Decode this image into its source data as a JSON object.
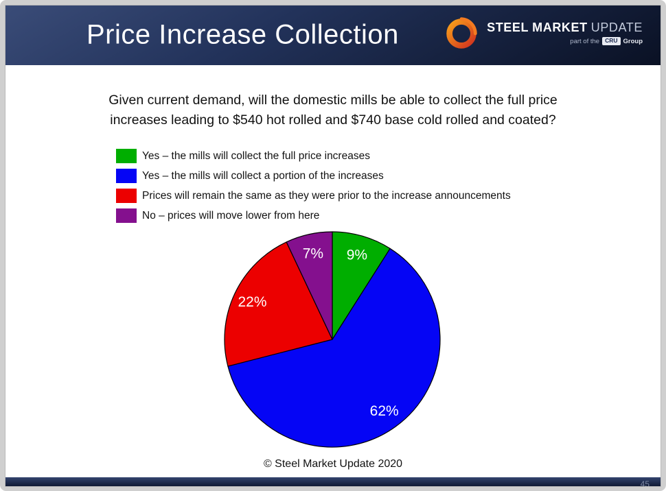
{
  "slide": {
    "title": "Price Increase Collection",
    "footer": "© Steel Market Update 2020",
    "page_number": "45"
  },
  "logo": {
    "steel": "STEEL",
    "market": "MARKET",
    "update": "UPDATE",
    "part_of": "part of the",
    "cru": "CRU",
    "group": "Group"
  },
  "question": {
    "line1": "Given current demand, will the domestic mills be able to collect the full price",
    "line2": "increases leading to $540 hot rolled and $740 base cold rolled and coated?"
  },
  "chart_data": {
    "type": "pie",
    "start_angle": "12 o'clock",
    "direction": "clockwise",
    "legend_position": "above",
    "value_labels": "percent-inside-white",
    "slices": [
      {
        "label": "Yes – the mills will collect the full price increases",
        "value": 9,
        "display": "9%",
        "color": "#00AE00"
      },
      {
        "label": "Yes – the mills will collect a portion of the increases",
        "value": 62,
        "display": "62%",
        "color": "#0505F5"
      },
      {
        "label": "Prices will remain the same as they were prior to the increase announcements",
        "value": 22,
        "display": "22%",
        "color": "#EC0000"
      },
      {
        "label": "No – prices will move lower from here",
        "value": 7,
        "display": "7%",
        "color": "#84108E"
      }
    ]
  }
}
